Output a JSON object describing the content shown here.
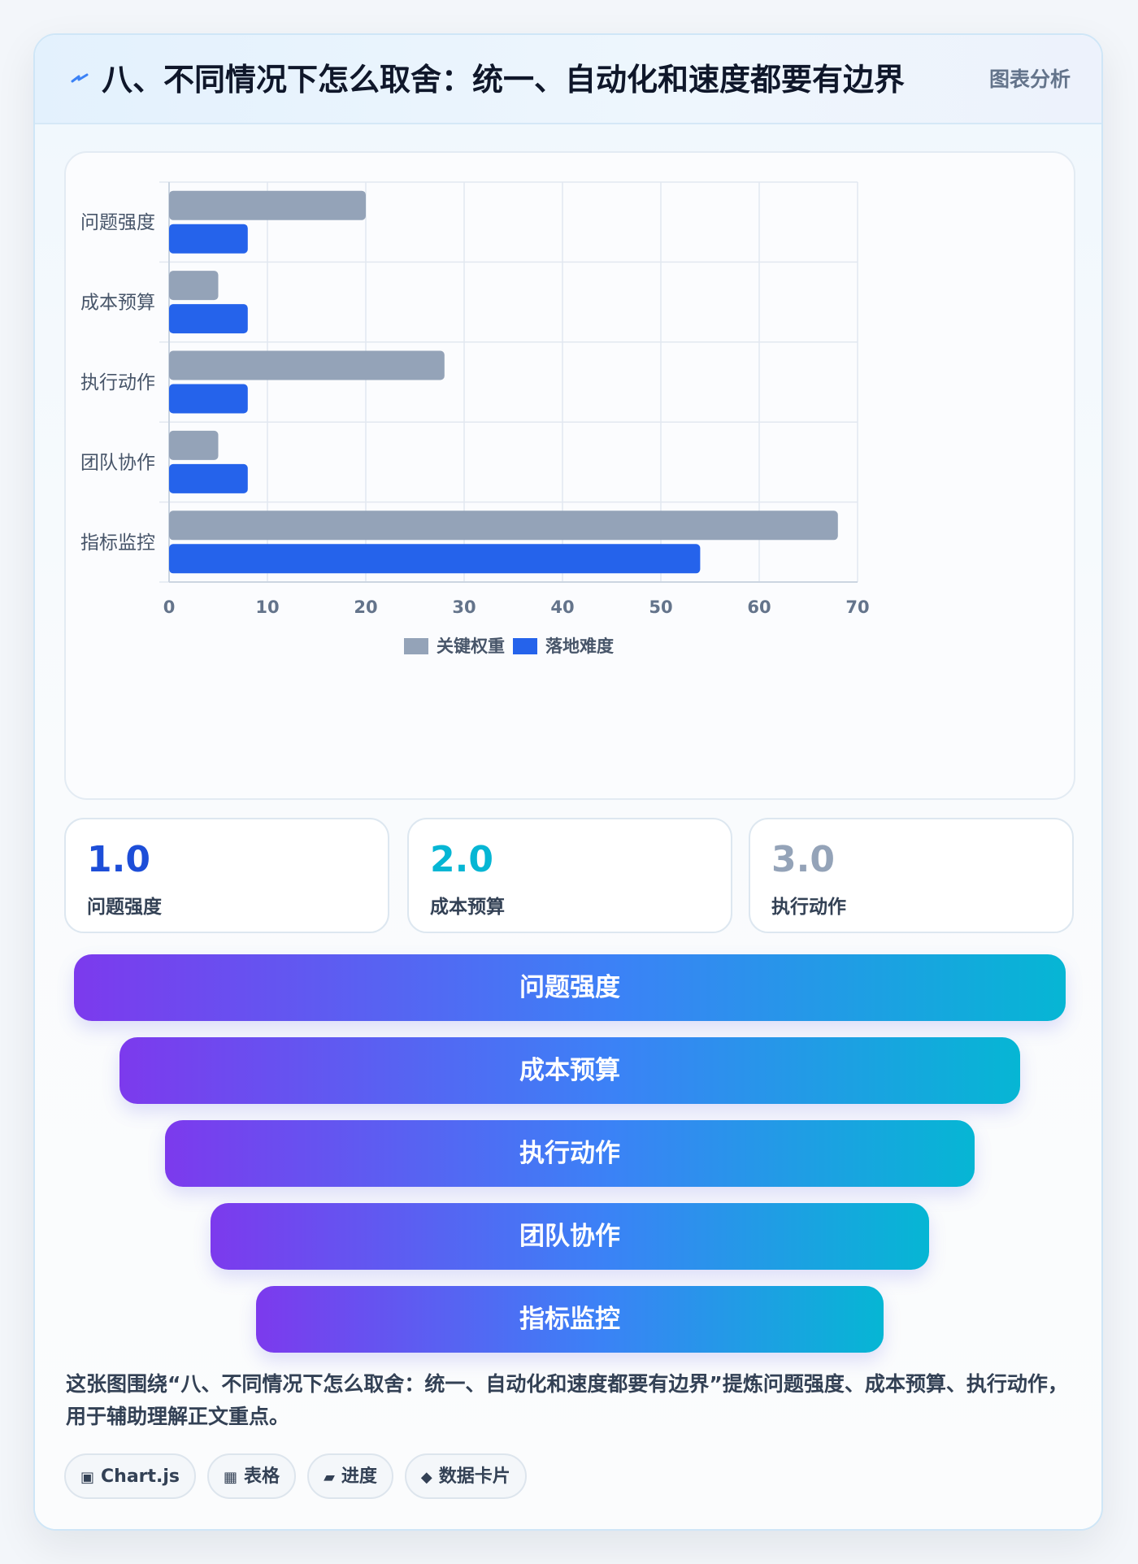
{
  "header": {
    "title": "八、不同情况下怎么取舍：统一、自动化和速度都要有边界",
    "badge": "图表分析",
    "icon": "lightning-icon"
  },
  "chart_data": {
    "type": "bar",
    "orientation": "horizontal",
    "categories": [
      "问题强度",
      "成本预算",
      "执行动作",
      "团队协作",
      "指标监控"
    ],
    "series": [
      {
        "name": "关键权重",
        "values": [
          20,
          5,
          28,
          5,
          68
        ],
        "color": "#94a3b8"
      },
      {
        "name": "落地难度",
        "values": [
          8,
          8,
          8,
          8,
          54
        ],
        "color": "#2563eb"
      }
    ],
    "xlim": [
      0,
      70
    ],
    "xticks": [
      0,
      10,
      20,
      30,
      40,
      50,
      60,
      70
    ],
    "grid": true,
    "legend": "bottom-center"
  },
  "kpis": [
    {
      "value": "1.0",
      "label": "问题强度",
      "color": "#1d4ed8"
    },
    {
      "value": "2.0",
      "label": "成本预算",
      "color": "#06b6d4"
    },
    {
      "value": "3.0",
      "label": "执行动作",
      "color": "#94a3b8"
    }
  ],
  "funnel": [
    {
      "label": "问题强度"
    },
    {
      "label": "成本预算"
    },
    {
      "label": "执行动作"
    },
    {
      "label": "团队协作"
    },
    {
      "label": "指标监控"
    }
  ],
  "description": "这张图围绕“八、不同情况下怎么取舍：统一、自动化和速度都要有边界”提炼问题强度、成本预算、执行动作，用于辅助理解正文重点。",
  "chips": [
    {
      "icon": "▣",
      "icon_name": "chart-icon",
      "label": "Chart.js"
    },
    {
      "icon": "▦",
      "icon_name": "table-icon",
      "label": "表格"
    },
    {
      "icon": "▰",
      "icon_name": "progress-icon",
      "label": "进度"
    },
    {
      "icon": "◆",
      "icon_name": "data-card-icon",
      "label": "数据卡片"
    }
  ]
}
